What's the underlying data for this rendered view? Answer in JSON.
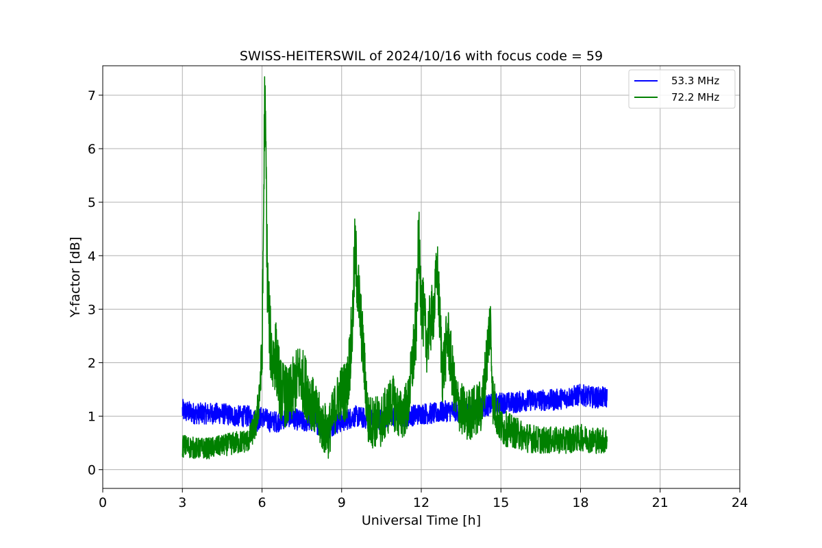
{
  "chart_data": {
    "type": "line",
    "title": "SWISS-HEITERSWIL of 2024/10/16 with focus code = 59",
    "xlabel": "Universal Time [h]",
    "ylabel": "Y-factor [dB]",
    "xlim": [
      0,
      24
    ],
    "ylim": [
      -0.35,
      7.55
    ],
    "xticks": [
      0,
      3,
      6,
      9,
      12,
      15,
      18,
      21,
      24
    ],
    "yticks": [
      0,
      1,
      2,
      3,
      4,
      5,
      6,
      7
    ],
    "grid": true,
    "legend_position": "top-right",
    "series": [
      {
        "name": "53.3 MHz",
        "color": "#0000ff",
        "x": [
          3.0,
          3.5,
          4.0,
          4.5,
          5.0,
          5.5,
          5.8,
          6.0,
          6.3,
          6.6,
          7.0,
          7.5,
          8.0,
          8.4,
          8.7,
          9.0,
          9.5,
          10.0,
          10.5,
          11.0,
          11.5,
          12.0,
          12.5,
          13.0,
          13.5,
          14.0,
          14.5,
          15.0,
          15.5,
          16.0,
          16.5,
          17.0,
          17.5,
          18.0,
          18.5,
          19.0
        ],
        "y": [
          1.1,
          1.05,
          1.05,
          1.05,
          1.0,
          1.0,
          0.9,
          1.0,
          0.9,
          0.9,
          1.0,
          0.9,
          0.9,
          0.7,
          0.85,
          0.9,
          1.0,
          0.95,
          0.95,
          1.0,
          1.0,
          1.05,
          1.05,
          1.1,
          1.1,
          1.15,
          1.2,
          1.25,
          1.25,
          1.3,
          1.3,
          1.3,
          1.35,
          1.4,
          1.35,
          1.35
        ],
        "band": [
          0.22,
          0.2,
          0.2,
          0.2,
          0.2,
          0.2,
          0.2,
          0.2,
          0.2,
          0.2,
          0.2,
          0.2,
          0.2,
          0.2,
          0.2,
          0.2,
          0.2,
          0.2,
          0.2,
          0.2,
          0.2,
          0.2,
          0.2,
          0.2,
          0.2,
          0.2,
          0.2,
          0.2,
          0.2,
          0.2,
          0.2,
          0.2,
          0.2,
          0.2,
          0.2,
          0.2
        ]
      },
      {
        "name": "72.2 MHz",
        "color": "#008000",
        "x": [
          3.0,
          3.5,
          4.0,
          4.5,
          5.0,
          5.5,
          5.8,
          6.0,
          6.05,
          6.1,
          6.15,
          6.2,
          6.3,
          6.4,
          6.5,
          6.7,
          7.0,
          7.4,
          7.7,
          8.0,
          8.3,
          8.5,
          8.9,
          9.2,
          9.4,
          9.5,
          9.6,
          9.8,
          10.0,
          10.5,
          10.9,
          11.2,
          11.5,
          11.8,
          11.9,
          12.0,
          12.2,
          12.5,
          12.6,
          12.8,
          13.0,
          13.3,
          13.7,
          14.0,
          14.3,
          14.6,
          14.7,
          15.0,
          15.5,
          16.0,
          16.5,
          17.0,
          17.5,
          18.0,
          18.5,
          19.0
        ],
        "y": [
          0.45,
          0.4,
          0.4,
          0.45,
          0.5,
          0.55,
          0.9,
          2.0,
          4.3,
          6.9,
          5.8,
          3.6,
          2.5,
          2.0,
          2.2,
          1.5,
          1.3,
          1.8,
          1.5,
          1.1,
          0.8,
          0.7,
          1.4,
          1.5,
          2.6,
          4.1,
          3.5,
          2.3,
          0.9,
          0.9,
          1.3,
          1.0,
          1.2,
          2.6,
          4.3,
          3.2,
          2.4,
          3.1,
          3.8,
          1.8,
          2.5,
          1.3,
          1.0,
          1.1,
          1.2,
          2.8,
          1.3,
          0.8,
          0.7,
          0.6,
          0.55,
          0.55,
          0.55,
          0.6,
          0.55,
          0.55
        ],
        "band": [
          0.22,
          0.2,
          0.2,
          0.2,
          0.22,
          0.22,
          0.3,
          0.6,
          0.8,
          0.8,
          0.8,
          0.8,
          0.7,
          0.7,
          0.7,
          0.6,
          0.6,
          0.6,
          0.6,
          0.5,
          0.5,
          0.5,
          0.5,
          0.6,
          0.7,
          0.7,
          0.7,
          0.6,
          0.5,
          0.5,
          0.5,
          0.5,
          0.5,
          0.7,
          0.7,
          0.7,
          0.6,
          0.6,
          0.6,
          0.6,
          0.6,
          0.5,
          0.5,
          0.5,
          0.5,
          0.6,
          0.5,
          0.35,
          0.3,
          0.28,
          0.25,
          0.25,
          0.25,
          0.25,
          0.25,
          0.25
        ]
      }
    ]
  }
}
